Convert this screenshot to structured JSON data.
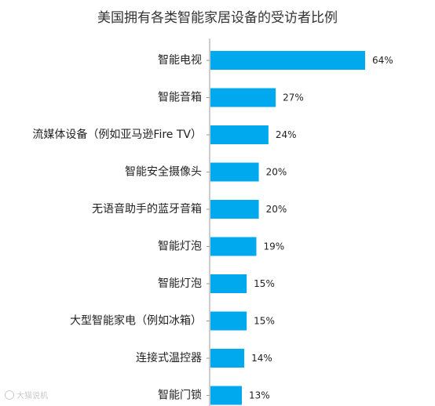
{
  "chart_data": {
    "type": "bar",
    "orientation": "horizontal",
    "title": "美国拥有各类智能家居设备的受访者比例",
    "categories": [
      "智能电视",
      "智能音箱",
      "流媒体设备（例如亚马逊Fire TV）",
      "智能安全摄像头",
      "无语音助手的蓝牙音箱",
      "智能灯泡",
      "智能灯泡",
      "大型智能家电（例如冰箱）",
      "连接式温控器",
      "智能门锁"
    ],
    "values": [
      64,
      27,
      24,
      20,
      20,
      19,
      15,
      15,
      14,
      13
    ],
    "value_labels": [
      "64%",
      "27%",
      "24%",
      "20%",
      "20%",
      "19%",
      "15%",
      "15%",
      "14%",
      "13%"
    ],
    "unit": "%",
    "xlim": [
      0,
      64
    ],
    "bar_color": "#00a9ee",
    "grid": false,
    "legend": "none"
  },
  "watermark": {
    "text": "大猫说机"
  }
}
